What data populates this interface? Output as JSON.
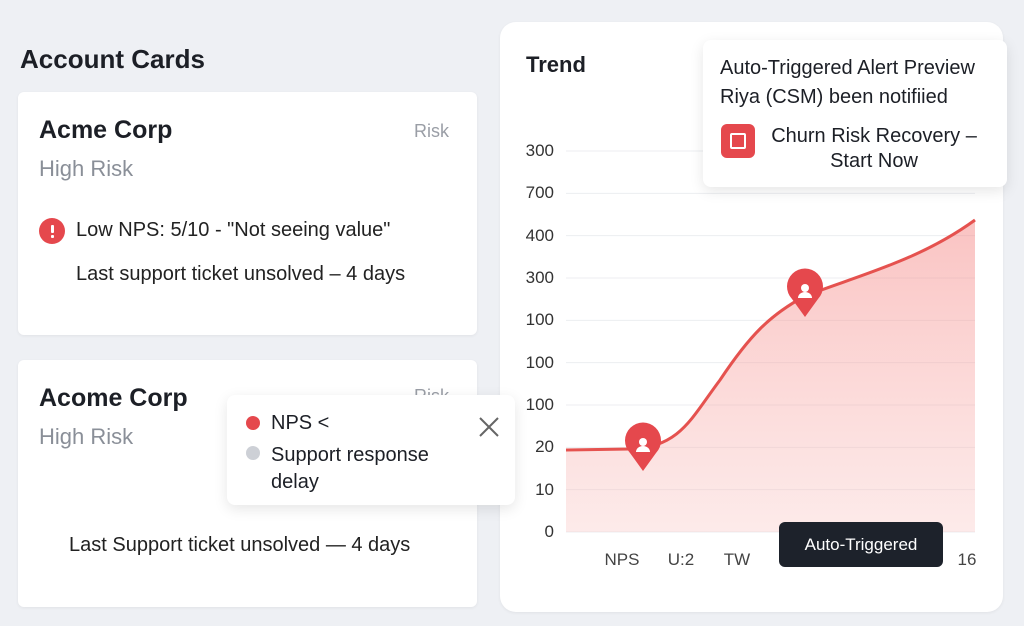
{
  "header": {
    "title": "Account Cards"
  },
  "cards": [
    {
      "name": "Acme Corp",
      "tag": "Risk",
      "status": "High Risk",
      "items": [
        "Low NPS: 5/10 - \"Not seeing value\"",
        "Last support ticket unsolved – 4 days"
      ]
    },
    {
      "name": "Acome Corp",
      "tag": "Risk",
      "status": "High Risk",
      "items": [
        "Last Support ticket unsolved — 4 days"
      ]
    }
  ],
  "trend": {
    "title": "Trend",
    "y_labels": [
      "300",
      "700",
      "400",
      "300",
      "100",
      "100",
      "100",
      "20",
      "10",
      "0"
    ],
    "x_labels": [
      "NPS",
      "U:2",
      "TW",
      "16"
    ]
  },
  "alert": {
    "title": "Auto-Triggered Alert Preview",
    "subtitle": "Riya (CSM) been notifiied",
    "action": "Churn Risk Recovery – Start Now"
  },
  "tooltip": {
    "items": [
      "NPS <",
      "Support response delay"
    ]
  },
  "badge": {
    "label": "Auto-Triggered"
  }
}
